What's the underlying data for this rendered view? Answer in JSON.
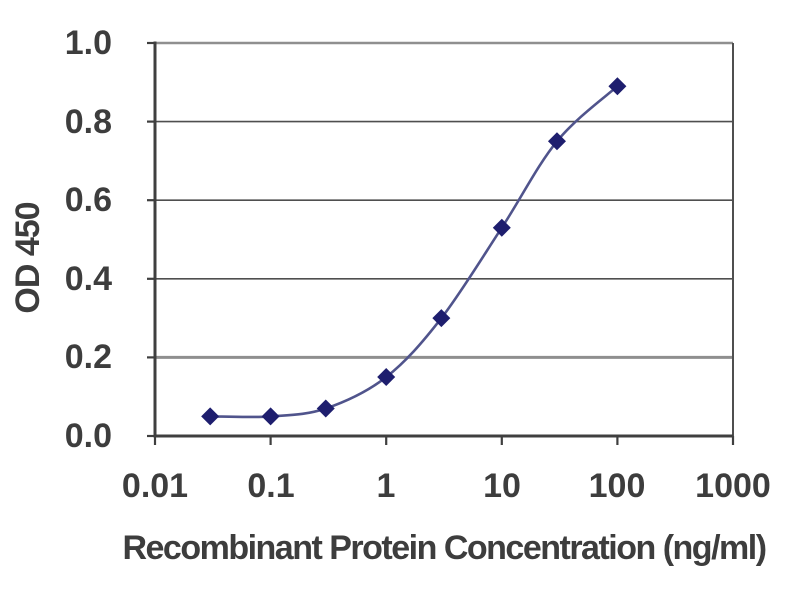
{
  "chart_data": {
    "type": "line",
    "title": "",
    "xlabel": "Recombinant Protein Concentration (ng/ml)",
    "ylabel": "OD 450",
    "x_scale": "log",
    "xlim": [
      0.01,
      1000
    ],
    "ylim": [
      0.0,
      1.0
    ],
    "x_tick_labels": [
      "0.01",
      "0.1",
      "1",
      "10",
      "100",
      "1000"
    ],
    "y_tick_labels": [
      "1.0",
      "0.8",
      "0.6",
      "0.4",
      "0.2",
      "0.0"
    ],
    "y_tick_values": [
      1.0,
      0.8,
      0.6,
      0.4,
      0.2,
      0.0
    ],
    "grid": "horizontal-only",
    "legend": "none",
    "series": [
      {
        "name": "OD 450",
        "marker": "diamond",
        "x": [
          0.03,
          0.1,
          0.3,
          1,
          3,
          10,
          30,
          100
        ],
        "y": [
          0.05,
          0.05,
          0.07,
          0.15,
          0.3,
          0.53,
          0.75,
          0.89
        ]
      }
    ]
  },
  "colors": {
    "marker": "#1e1e6e",
    "line": "#50548c",
    "grid_major": "#4f4f4f",
    "grid_emphasis": "#8f8f8f",
    "axis": "#3f3f3f",
    "text": "#3d3d3d",
    "background": "#ffffff"
  }
}
